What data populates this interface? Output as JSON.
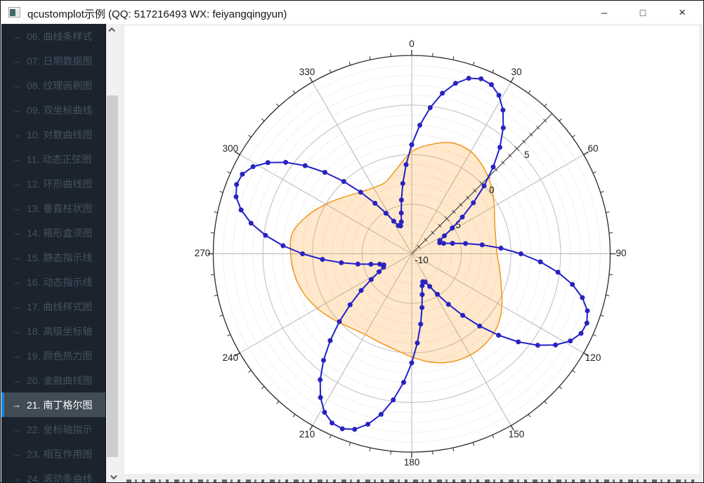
{
  "window": {
    "title": "qcustomplot示例 (QQ: 517216493 WX: feiyangqingyun)",
    "controls": {
      "minimize": "–",
      "maximize": "□",
      "close": "×"
    }
  },
  "sidebar": {
    "arrow_icon": "→",
    "items": [
      {
        "label": "06. 曲线条样式",
        "selected": false
      },
      {
        "label": "07. 日期数据图",
        "selected": false
      },
      {
        "label": "08. 纹理画刷图",
        "selected": false
      },
      {
        "label": "09. 双坐标曲线",
        "selected": false
      },
      {
        "label": "10. 对数曲线图",
        "selected": false
      },
      {
        "label": "11. 动态正弦图",
        "selected": false
      },
      {
        "label": "12. 环形曲线图",
        "selected": false
      },
      {
        "label": "13. 垂直柱状图",
        "selected": false
      },
      {
        "label": "14. 箱形盒须图",
        "selected": false
      },
      {
        "label": "15. 静态指示线",
        "selected": false
      },
      {
        "label": "16. 动态指示线",
        "selected": false
      },
      {
        "label": "17. 曲线样式图",
        "selected": false
      },
      {
        "label": "18. 高级坐标轴",
        "selected": false
      },
      {
        "label": "19. 颜色热力图",
        "selected": false
      },
      {
        "label": "20. 金融曲线图",
        "selected": false
      },
      {
        "label": "21. 南丁格尔图",
        "selected": true
      },
      {
        "label": "22. 坐标轴指示",
        "selected": false
      },
      {
        "label": "23. 相互作用图",
        "selected": false
      },
      {
        "label": "24. 滚动条曲线",
        "selected": false
      }
    ]
  },
  "chart_data": {
    "type": "line",
    "subtype": "polar",
    "angular_axis": {
      "tick_labels": [
        "0",
        "30",
        "60",
        "90",
        "120",
        "150",
        "180",
        "210",
        "240",
        "270",
        "300",
        "330"
      ],
      "tick_step_deg": 30,
      "minor_tick_step_deg": 6,
      "direction": "clockwise",
      "zero_position": "top"
    },
    "radial_axis": {
      "range": [
        -10,
        10
      ],
      "tick_labels": [
        "-10",
        "-5",
        "0",
        "5"
      ],
      "tick_values": [
        -10,
        -5,
        0,
        5
      ],
      "minor_grid_step": 1,
      "major_grid_step": 5,
      "axis_angle_deg": 45
    },
    "grid": {
      "show": true,
      "minor_circles": "dotted",
      "major_circles": "solid",
      "spokes_every_deg": 30
    },
    "legend_position": "none",
    "series": [
      {
        "name": "graph1-petal-curve",
        "style": "line+scatter-disc",
        "color": "#2321c9",
        "dot_color": "#2823c0",
        "closed": true,
        "angle_step_deg": 3.6,
        "values": [
          1,
          2.99,
          4.85,
          6.48,
          7.75,
          8.61,
          8.98,
          8.86,
          8.24,
          7.16,
          5.7,
          3.94,
          2,
          0,
          -1.94,
          -3.7,
          -5.16,
          -6.24,
          -6.86,
          -6.98,
          -6.61,
          -5.75,
          -4.48,
          -2.85,
          -0.99,
          1,
          2.99,
          4.85,
          6.48,
          7.75,
          8.61,
          8.98,
          8.86,
          8.24,
          7.16,
          5.7,
          3.94,
          2,
          0,
          -1.94,
          -3.7,
          -5.16,
          -6.24,
          -6.86,
          -6.98,
          -6.61,
          -5.75,
          -4.48,
          -2.85,
          -0.99,
          1,
          2.99,
          4.85,
          6.48,
          7.75,
          8.61,
          8.98,
          8.86,
          8.24,
          7.16,
          5.7,
          3.94,
          2,
          0,
          -1.94,
          -3.7,
          -5.16,
          -6.24,
          -6.86,
          -6.98,
          -6.61,
          -5.75,
          -4.48,
          -2.85,
          -0.99,
          1,
          2.99,
          4.85,
          6.48,
          7.75,
          8.61,
          8.98,
          8.86,
          8.24,
          7.16,
          5.7,
          3.94,
          2,
          0,
          -1.94,
          -3.7,
          -5.16,
          -6.24,
          -6.86,
          -6.98,
          -6.61,
          -5.75,
          -4.48,
          -2.85,
          -0.99
        ]
      },
      {
        "name": "graph2-filled-blob",
        "style": "line+fill",
        "color": "#f0961e",
        "fill_color": "rgba(255,150,20,0.22)",
        "closed": true,
        "angle_step_deg": 10,
        "values": [
          0.3,
          1.2,
          1.9,
          1.9,
          1.3,
          0.5,
          -0.4,
          -1.1,
          -1.4,
          -1.4,
          -1.0,
          -0.4,
          0.5,
          1.3,
          1.7,
          1.8,
          1.6,
          1.1,
          0.4,
          -0.2,
          -0.5,
          -0.6,
          -0.3,
          0.3,
          1.0,
          1.6,
          2.0,
          2.2,
          2.2,
          1.2,
          0.0,
          -1.1,
          -1.9,
          -2.3,
          -2.3,
          -1.3
        ]
      }
    ]
  }
}
